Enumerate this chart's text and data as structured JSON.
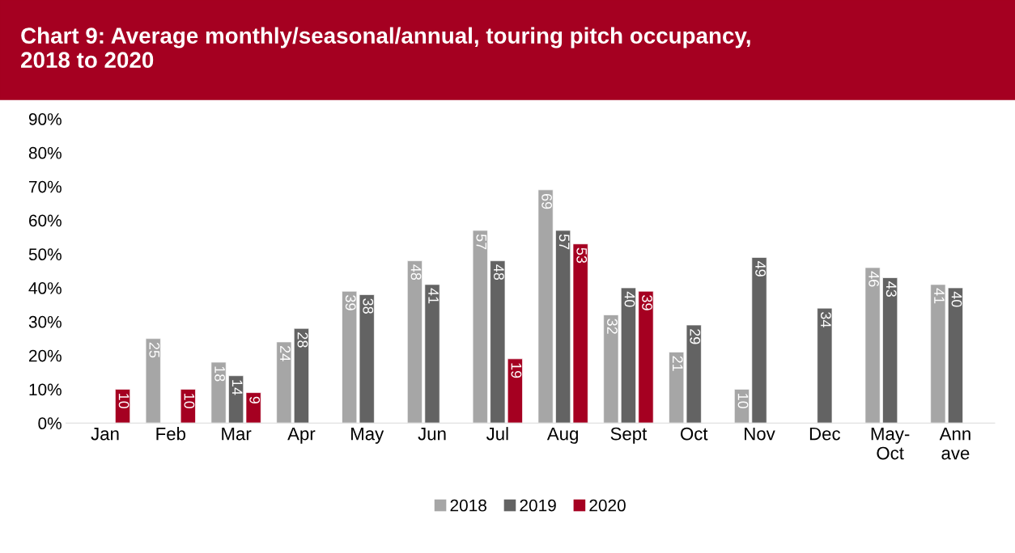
{
  "chart_data": {
    "type": "bar",
    "title": "Chart 9: Average monthly/seasonal/annual, touring pitch occupancy,\n2018 to 2020",
    "categories": [
      "Jan",
      "Feb",
      "Mar",
      "Apr",
      "May",
      "Jun",
      "Jul",
      "Aug",
      "Sept",
      "Oct",
      "Nov",
      "Dec",
      "May-\nOct",
      "Ann\nave"
    ],
    "series": [
      {
        "name": "2018",
        "color": "#a6a6a6",
        "values": [
          null,
          25,
          18,
          24,
          39,
          48,
          57,
          69,
          32,
          21,
          10,
          null,
          46,
          41
        ]
      },
      {
        "name": "2019",
        "color": "#636363",
        "values": [
          null,
          null,
          14,
          28,
          38,
          41,
          48,
          57,
          40,
          29,
          49,
          34,
          43,
          40
        ]
      },
      {
        "name": "2020",
        "color": "#a50021",
        "values": [
          10,
          10,
          9,
          null,
          null,
          null,
          19,
          53,
          39,
          null,
          null,
          null,
          null,
          null
        ]
      }
    ],
    "ylim": [
      0,
      90
    ],
    "yticks": [
      {
        "value": 0,
        "label": "0%"
      },
      {
        "value": 10,
        "label": "10%"
      },
      {
        "value": 20,
        "label": "20%"
      },
      {
        "value": 30,
        "label": "30%"
      },
      {
        "value": 40,
        "label": "40%"
      },
      {
        "value": 50,
        "label": "50%"
      },
      {
        "value": 60,
        "label": "60%"
      },
      {
        "value": 70,
        "label": "70%"
      },
      {
        "value": 80,
        "label": "80%"
      },
      {
        "value": 90,
        "label": "90%"
      }
    ],
    "data_labels": true,
    "grid": false,
    "legend": "bottom"
  }
}
